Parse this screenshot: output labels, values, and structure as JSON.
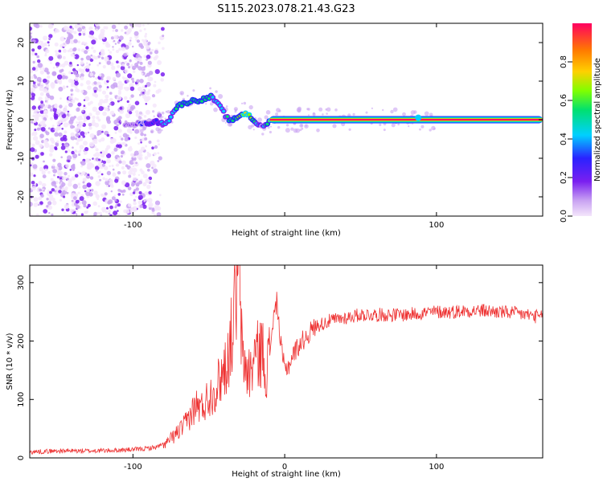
{
  "title": "S115.2023.078.21.43.G23",
  "colors": {
    "snr_line": "#ee3333",
    "track": "#ff2266",
    "background": "#ffffff",
    "colormap": [
      "#f4e6fb",
      "#c9a3f2",
      "#7a1ff0",
      "#2a22ff",
      "#00d0ff",
      "#00e070",
      "#80ff00",
      "#ffd000",
      "#ff7a00",
      "#ff0060"
    ]
  },
  "chart_data": [
    {
      "type": "heatmap",
      "title": "",
      "xlabel": "Height of straight line (km)",
      "ylabel": "Frequency (Hz)",
      "xlim": [
        -168,
        170
      ],
      "ylim": [
        -25,
        25
      ],
      "xticks": [
        -100,
        0,
        100
      ],
      "xtick_labels": [
        "-100",
        "",
        "100"
      ],
      "yticks": [
        -20,
        -10,
        0,
        10,
        20
      ],
      "ytick_labels": [
        "-20",
        "-10",
        "0",
        "10",
        "20"
      ],
      "colorbar": {
        "label": "Normalized spectral amplitude",
        "range": [
          0,
          1
        ],
        "ticks": [
          0.0,
          0.2,
          0.4,
          0.6,
          0.8
        ],
        "tick_labels": [
          "0.0",
          "0.2",
          "0.4",
          "0.6",
          "0.8"
        ]
      },
      "grid": false,
      "noise_region_x": [
        -168,
        -80
      ],
      "ridge": {
        "x": [
          -100,
          -92,
          -85,
          -80,
          -76,
          -72,
          -68,
          -64,
          -60,
          -56,
          -52,
          -48,
          -45,
          -42,
          -38,
          -35,
          -32,
          -28,
          -24,
          -21,
          -18,
          -15,
          -12,
          -8,
          0,
          20,
          40,
          60,
          80,
          86,
          88,
          90,
          100,
          120,
          140,
          160,
          170
        ],
        "y": [
          -1,
          -1,
          -0.5,
          -1,
          0,
          3,
          4,
          4.5,
          5,
          5,
          5.5,
          6,
          4.5,
          3,
          0.5,
          -0.5,
          0.5,
          1.5,
          1.5,
          0,
          -1,
          -2,
          -1,
          0,
          0,
          0,
          0,
          0,
          0,
          0,
          0.5,
          0,
          0,
          0,
          0,
          0,
          0
        ],
        "amplitude": [
          0.25,
          0.3,
          0.35,
          0.4,
          0.45,
          0.5,
          0.55,
          0.55,
          0.6,
          0.55,
          0.55,
          0.5,
          0.45,
          0.45,
          0.5,
          0.55,
          0.6,
          0.7,
          0.75,
          0.55,
          0.45,
          0.3,
          0.55,
          0.85,
          0.95,
          0.95,
          0.95,
          0.95,
          0.95,
          0.95,
          0.5,
          0.95,
          0.95,
          0.95,
          0.95,
          0.95,
          0.95
        ]
      }
    },
    {
      "type": "line",
      "title": "",
      "xlabel": "Height of straight line (km)",
      "ylabel": "SNR (10 * v/v)",
      "xlim": [
        -168,
        170
      ],
      "ylim": [
        0,
        330
      ],
      "xticks": [
        -100,
        0,
        100
      ],
      "xtick_labels": [
        "-100",
        "0",
        "100"
      ],
      "yticks": [
        0,
        100,
        200,
        300
      ],
      "ytick_labels": [
        "0",
        "100",
        "200",
        "300"
      ],
      "grid": false,
      "series": [
        {
          "x": [
            -168,
            -150,
            -130,
            -110,
            -95,
            -85,
            -78,
            -72,
            -66,
            -62,
            -58,
            -55,
            -50,
            -45,
            -42,
            -38,
            -35,
            -32,
            -30,
            -28,
            -25,
            -22,
            -20,
            -18,
            -15,
            -12,
            -10,
            -8,
            -5,
            -3,
            0,
            3,
            6,
            10,
            15,
            20,
            25,
            30,
            40,
            50,
            60,
            70,
            80,
            90,
            100,
            110,
            120,
            130,
            140,
            150,
            160,
            170
          ],
          "values": [
            10,
            12,
            12,
            13,
            15,
            18,
            25,
            40,
            55,
            75,
            90,
            85,
            105,
            120,
            140,
            165,
            210,
            280,
            320,
            170,
            150,
            145,
            180,
            175,
            185,
            150,
            175,
            230,
            270,
            200,
            150,
            160,
            180,
            195,
            210,
            225,
            230,
            235,
            240,
            245,
            245,
            245,
            245,
            248,
            250,
            250,
            252,
            252,
            250,
            248,
            245,
            240
          ]
        }
      ]
    }
  ]
}
